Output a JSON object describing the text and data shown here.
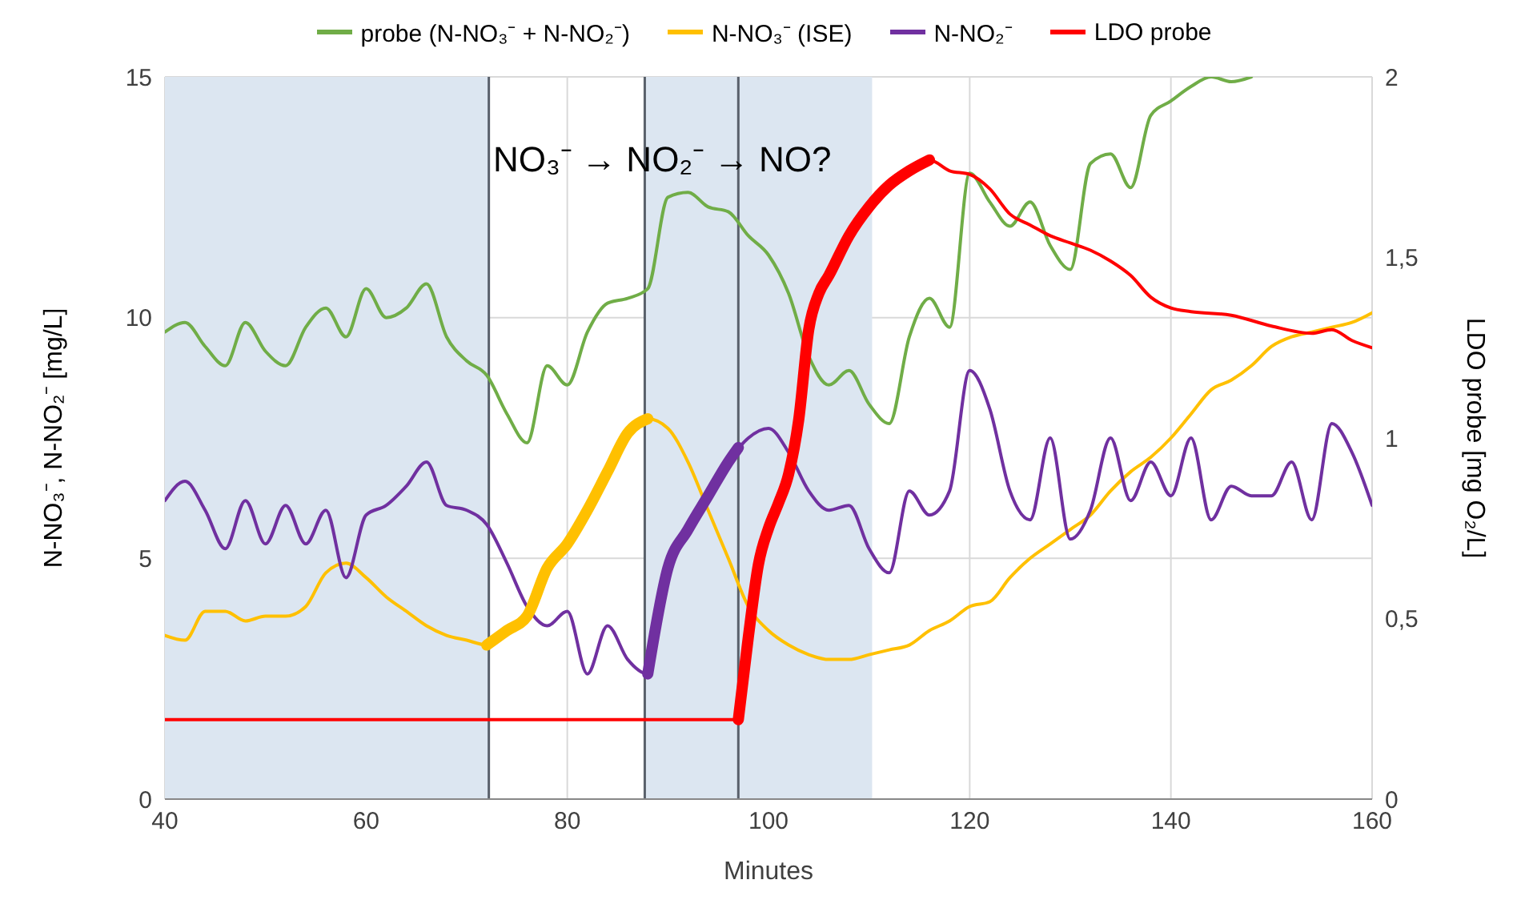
{
  "chart_data": {
    "type": "line",
    "xlabel": "Minutes",
    "ylabel": "N-NO₃⁻, N-NO₂⁻ [mg/L]",
    "y2label": "LDO probe [mg O₂/L]",
    "annotations": [
      "NO₃⁻ → NO₂⁻ → NO?"
    ],
    "xlim": [
      40,
      160
    ],
    "xticks": [
      40,
      60,
      80,
      100,
      120,
      140,
      160
    ],
    "ylim": [
      0,
      15
    ],
    "yticks": [
      0,
      5,
      10,
      15
    ],
    "y2lim": [
      0,
      2
    ],
    "y2ticks": [
      0,
      {
        "value": 0.5,
        "label": "0,5"
      },
      1,
      {
        "value": 1.5,
        "label": "1,5"
      },
      2
    ],
    "grid": true,
    "legend": "top",
    "marker": "none",
    "line_style": "solid",
    "bands": [
      {
        "axis": "x",
        "from": 40,
        "to": 72.2,
        "color": "#dce6f1"
      },
      {
        "axis": "x",
        "from": 87.7,
        "to": 110.3,
        "color": "#dce6f1"
      }
    ],
    "ref_lines": [
      {
        "axis": "x",
        "value": 72.2,
        "color": "#59606b"
      },
      {
        "axis": "x",
        "value": 87.7,
        "color": "#59606b"
      },
      {
        "axis": "x",
        "value": 97,
        "color": "#59606b"
      }
    ],
    "series": [
      {
        "name": "probe (N-NO₃⁻ + N-NO₂⁻)",
        "color": "#70ad47",
        "x": [
          40,
          42,
          44,
          46,
          48,
          50,
          52,
          54,
          56,
          58,
          60,
          62,
          64,
          66,
          68,
          70,
          72,
          74,
          76,
          78,
          80,
          82,
          84,
          86,
          88,
          90,
          92,
          94,
          96,
          98,
          100,
          102,
          104,
          106,
          108,
          110,
          112,
          114,
          116,
          118,
          120,
          122,
          124,
          126,
          128,
          130,
          132,
          134,
          136,
          138,
          140,
          142,
          144,
          146,
          148
        ],
        "values": [
          9.7,
          9.9,
          9.4,
          9.0,
          9.9,
          9.3,
          9.0,
          9.8,
          10.2,
          9.6,
          10.6,
          10.0,
          10.2,
          10.7,
          9.6,
          9.1,
          8.8,
          8.0,
          7.4,
          9.0,
          8.6,
          9.7,
          10.3,
          10.4,
          10.6,
          12.5,
          12.6,
          12.3,
          12.2,
          11.7,
          11.3,
          10.5,
          9.2,
          8.6,
          8.9,
          8.2,
          7.8,
          9.6,
          10.4,
          9.8,
          13.0,
          12.4,
          11.9,
          12.4,
          11.5,
          11.0,
          13.2,
          13.4,
          12.7,
          14.2,
          14.5,
          14.8,
          15.0,
          14.9,
          15.0
        ]
      },
      {
        "name": "N-NO₃⁻ (ISE)",
        "color": "#ffc000",
        "x": [
          40,
          42,
          44,
          46,
          48,
          50,
          52,
          54,
          56,
          58,
          60,
          62,
          64,
          66,
          68,
          70,
          72,
          74,
          76,
          78,
          80,
          82,
          84,
          86,
          88,
          90,
          92,
          94,
          96,
          98,
          100,
          102,
          104,
          106,
          108,
          110,
          112,
          114,
          116,
          118,
          120,
          122,
          124,
          126,
          128,
          130,
          132,
          134,
          136,
          138,
          140,
          142,
          144,
          146,
          148,
          150,
          152,
          154,
          156,
          158,
          160
        ],
        "values": [
          3.4,
          3.3,
          3.9,
          3.9,
          3.7,
          3.8,
          3.8,
          4.0,
          4.7,
          4.9,
          4.6,
          4.2,
          3.9,
          3.6,
          3.4,
          3.3,
          3.2,
          3.5,
          3.8,
          4.8,
          5.3,
          6.0,
          6.8,
          7.6,
          7.9,
          7.7,
          7.0,
          6.0,
          5.0,
          4.0,
          3.5,
          3.2,
          3.0,
          2.9,
          2.9,
          3.0,
          3.1,
          3.2,
          3.5,
          3.7,
          4.0,
          4.1,
          4.6,
          5.0,
          5.3,
          5.6,
          5.9,
          6.4,
          6.8,
          7.1,
          7.5,
          8.0,
          8.5,
          8.7,
          9.0,
          9.4,
          9.6,
          9.7,
          9.8,
          9.9,
          10.1
        ]
      },
      {
        "name": "N-NO₂⁻",
        "color": "#7030a0",
        "x": [
          40,
          42,
          44,
          46,
          48,
          50,
          52,
          54,
          56,
          58,
          60,
          62,
          64,
          66,
          68,
          70,
          72,
          74,
          76,
          78,
          80,
          82,
          84,
          86,
          88,
          90,
          92,
          94,
          96,
          98,
          100,
          102,
          104,
          106,
          108,
          110,
          112,
          114,
          116,
          118,
          120,
          122,
          124,
          126,
          128,
          130,
          132,
          134,
          136,
          138,
          140,
          142,
          144,
          146,
          148,
          150,
          152,
          154,
          156,
          158,
          160
        ],
        "values": [
          6.2,
          6.6,
          6.0,
          5.2,
          6.2,
          5.3,
          6.1,
          5.3,
          6.0,
          4.6,
          5.9,
          6.1,
          6.5,
          7.0,
          6.1,
          6.0,
          5.7,
          4.9,
          4.0,
          3.6,
          3.9,
          2.6,
          3.6,
          2.9,
          2.6,
          4.8,
          5.6,
          6.3,
          7.0,
          7.5,
          7.7,
          7.2,
          6.4,
          6.0,
          6.1,
          5.2,
          4.7,
          6.4,
          5.9,
          6.4,
          8.9,
          8.1,
          6.4,
          5.8,
          7.5,
          5.4,
          6.0,
          7.5,
          6.2,
          7.0,
          6.3,
          7.5,
          5.8,
          6.5,
          6.3,
          6.3,
          7.0,
          5.8,
          7.8,
          7.2,
          6.1
        ]
      },
      {
        "name": "LDO probe",
        "color": "#ff0000",
        "axis": "y2",
        "x": [
          40,
          60,
          80,
          97,
          98,
          99,
          100,
          101,
          102,
          103,
          104,
          105,
          106,
          108,
          110,
          112,
          114,
          116,
          118,
          120,
          122,
          124,
          126,
          128,
          130,
          132,
          134,
          136,
          138,
          140,
          142,
          146,
          150,
          154,
          156,
          158,
          160
        ],
        "values": [
          0.22,
          0.22,
          0.22,
          0.22,
          0.45,
          0.65,
          0.75,
          0.82,
          0.9,
          1.05,
          1.3,
          1.4,
          1.45,
          1.56,
          1.64,
          1.7,
          1.74,
          1.77,
          1.74,
          1.73,
          1.69,
          1.62,
          1.59,
          1.56,
          1.54,
          1.52,
          1.49,
          1.45,
          1.39,
          1.36,
          1.35,
          1.34,
          1.31,
          1.29,
          1.3,
          1.27,
          1.25
        ]
      },
      {
        "color": "#ffc000",
        "x": [
          72,
          74,
          76,
          78,
          80,
          82,
          84,
          86,
          88
        ],
        "values": [
          3.2,
          3.5,
          3.8,
          4.8,
          5.3,
          6.0,
          6.8,
          7.6,
          7.9
        ]
      },
      {
        "color": "#7030a0",
        "x": [
          88,
          90,
          92,
          94,
          96,
          97
        ],
        "values": [
          2.6,
          4.8,
          5.6,
          6.3,
          7.0,
          7.3
        ]
      },
      {
        "color": "#ff0000",
        "axis": "y2",
        "x": [
          97,
          98,
          99,
          100,
          101,
          102,
          103,
          104,
          105,
          106,
          108,
          110,
          112,
          114,
          116
        ],
        "values": [
          0.22,
          0.45,
          0.65,
          0.75,
          0.82,
          0.9,
          1.05,
          1.3,
          1.4,
          1.45,
          1.56,
          1.64,
          1.7,
          1.74,
          1.77
        ]
      }
    ]
  }
}
